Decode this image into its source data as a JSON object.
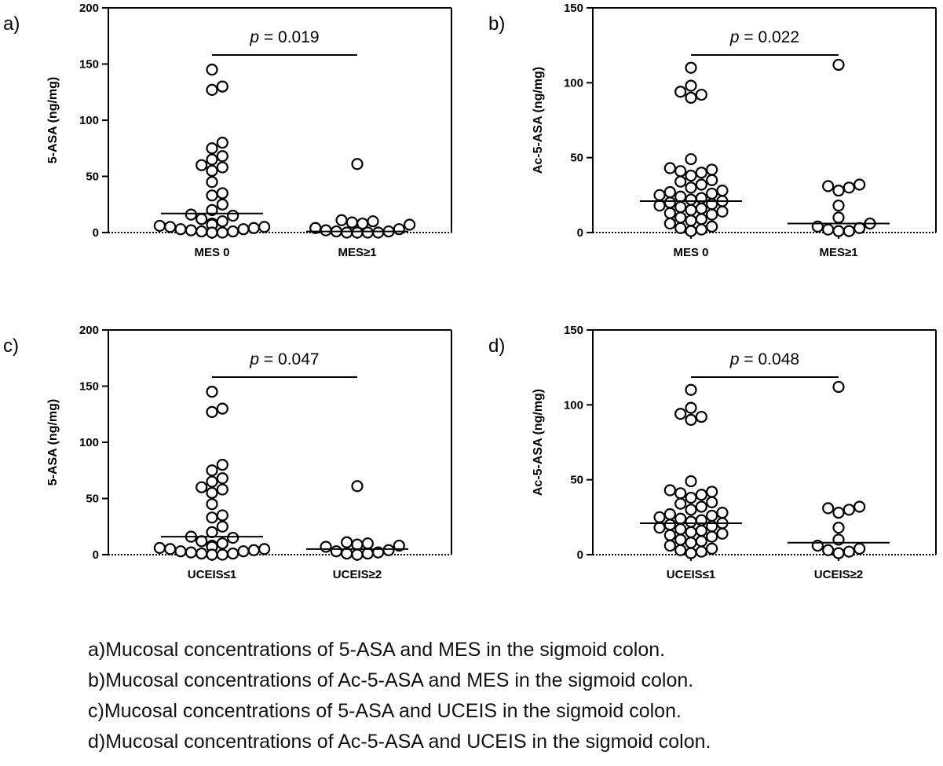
{
  "chart_data": [
    {
      "type": "scatter",
      "panel_label": "a)",
      "ylabel": "5-ASA (ng/mg)",
      "ylim": [
        0,
        200
      ],
      "yticks": [
        0,
        50,
        100,
        150,
        200
      ],
      "categories": [
        "MES 0",
        "MES≥1"
      ],
      "p_value_prefix": "p",
      "p_value_text": " = 0.019",
      "medians": [
        17,
        1
      ],
      "groups": [
        [
          145,
          130,
          127,
          80,
          75,
          68,
          65,
          60,
          58,
          55,
          45,
          35,
          33,
          25,
          20,
          16,
          15,
          12,
          10,
          8,
          7,
          6,
          5,
          5,
          4,
          3,
          3,
          2,
          1,
          1,
          0,
          0
        ],
        [
          61,
          11,
          10,
          9,
          8,
          7,
          4,
          3,
          2,
          1,
          1,
          0,
          0,
          0,
          0
        ]
      ]
    },
    {
      "type": "scatter",
      "panel_label": "b)",
      "ylabel": "Ac-5-ASA (ng/mg)",
      "ylim": [
        0,
        150
      ],
      "yticks": [
        0,
        50,
        100,
        150
      ],
      "categories": [
        "MES 0",
        "MES≥1"
      ],
      "p_value_prefix": "p",
      "p_value_text": " = 0.022",
      "medians": [
        21,
        6
      ],
      "groups": [
        [
          110,
          98,
          94,
          92,
          90,
          49,
          43,
          42,
          41,
          40,
          38,
          35,
          34,
          32,
          30,
          28,
          27,
          26,
          25,
          24,
          23,
          22,
          21,
          20,
          19,
          18,
          17,
          16,
          15,
          14,
          13,
          12,
          10,
          9,
          8,
          6,
          4,
          3,
          2,
          1
        ],
        [
          112,
          32,
          31,
          30,
          28,
          18,
          10,
          6,
          4,
          3,
          2,
          1,
          1
        ]
      ]
    },
    {
      "type": "scatter",
      "panel_label": "c)",
      "ylabel": "5-ASA (ng/mg)",
      "ylim": [
        0,
        200
      ],
      "yticks": [
        0,
        50,
        100,
        150,
        200
      ],
      "categories": [
        "UCEIS≤1",
        "UCEIS≥2"
      ],
      "p_value_prefix": "p",
      "p_value_text": " = 0.047",
      "medians": [
        16,
        5
      ],
      "groups": [
        [
          145,
          130,
          127,
          80,
          75,
          68,
          65,
          60,
          58,
          55,
          45,
          35,
          33,
          25,
          20,
          16,
          15,
          12,
          10,
          8,
          7,
          6,
          5,
          5,
          4,
          3,
          3,
          2,
          1,
          1,
          0,
          0
        ],
        [
          61,
          11,
          10,
          9,
          8,
          7,
          4,
          3,
          2,
          1,
          1,
          0
        ]
      ]
    },
    {
      "type": "scatter",
      "panel_label": "d)",
      "ylabel": "Ac-5-ASA (ng/mg)",
      "ylim": [
        0,
        150
      ],
      "yticks": [
        0,
        50,
        100,
        150
      ],
      "categories": [
        "UCEIS≤1",
        "UCEIS≥2"
      ],
      "p_value_prefix": "p",
      "p_value_text": " = 0.048",
      "medians": [
        21,
        8
      ],
      "groups": [
        [
          110,
          98,
          94,
          92,
          90,
          49,
          43,
          42,
          41,
          40,
          38,
          35,
          34,
          32,
          30,
          28,
          27,
          26,
          25,
          24,
          23,
          22,
          21,
          20,
          19,
          18,
          17,
          16,
          15,
          14,
          13,
          12,
          10,
          9,
          8,
          6,
          4,
          3,
          2,
          1
        ],
        [
          112,
          32,
          31,
          30,
          28,
          18,
          10,
          6,
          4,
          3,
          2,
          1
        ]
      ]
    }
  ],
  "captions": [
    "a)Mucosal concentrations of 5-ASA and MES in the sigmoid colon.",
    "b)Mucosal concentrations of Ac-5-ASA and MES in the sigmoid colon.",
    "c)Mucosal concentrations of 5-ASA and UCEIS in the sigmoid colon.",
    "d)Mucosal concentrations of Ac-5-ASA and UCEIS in the sigmoid colon."
  ],
  "colors": {
    "marker_stroke": "#000000",
    "marker_fill": "#ffffff",
    "axis": "#000000",
    "background": "#ffffff"
  }
}
